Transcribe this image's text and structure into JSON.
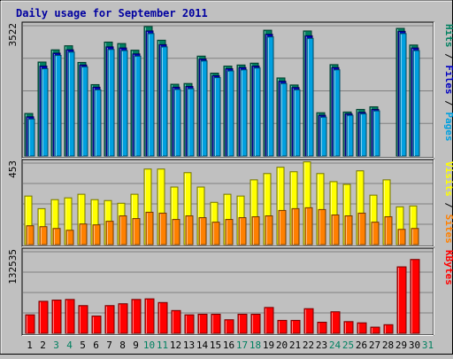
{
  "chart_data": [
    {
      "type": "bar",
      "title": "Daily usage for September 2011",
      "ymax_label": "3522",
      "legend": [
        {
          "label": "Pages",
          "color": "#00a0e0"
        },
        {
          "label": "Files",
          "color": "#0000c0"
        },
        {
          "label": "Hits",
          "color": "#008060"
        }
      ],
      "categories": [
        "1",
        "2",
        "3",
        "4",
        "5",
        "6",
        "7",
        "8",
        "9",
        "10",
        "11",
        "12",
        "13",
        "14",
        "15",
        "16",
        "17",
        "18",
        "19",
        "20",
        "21",
        "22",
        "23",
        "24",
        "25",
        "26",
        "27",
        "28",
        "29",
        "30",
        "31"
      ],
      "weekend_days": [
        "3",
        "4",
        "10",
        "11",
        "17",
        "18",
        "24",
        "25",
        "31"
      ],
      "ylim": [
        0,
        3522
      ],
      "series": [
        {
          "name": "Hits",
          "values": [
            1150,
            2540,
            2870,
            2980,
            2530,
            1930,
            3080,
            3040,
            2860,
            3500,
            3130,
            1940,
            1960,
            2700,
            2240,
            2430,
            2460,
            2510,
            3400,
            2110,
            1920,
            3380,
            1170,
            2470,
            1190,
            1260,
            1330,
            0,
            3450,
            3000,
            0
          ]
        },
        {
          "name": "Files",
          "values": [
            1060,
            2430,
            2780,
            2870,
            2460,
            1860,
            2950,
            2920,
            2760,
            3380,
            3010,
            1860,
            1880,
            2620,
            2170,
            2360,
            2390,
            2430,
            3290,
            2020,
            1850,
            3250,
            1100,
            2390,
            1140,
            1180,
            1260,
            0,
            3370,
            2920,
            0
          ]
        },
        {
          "name": "Pages",
          "values": [
            1000,
            2360,
            2720,
            2810,
            2410,
            1790,
            2880,
            2850,
            2700,
            3310,
            2950,
            1800,
            1820,
            2570,
            2120,
            2300,
            2330,
            2380,
            3220,
            1960,
            1790,
            3180,
            1050,
            2330,
            1100,
            1140,
            1220,
            0,
            3310,
            2850,
            0
          ]
        }
      ]
    },
    {
      "type": "bar",
      "ymax_label": "453",
      "legend": [
        {
          "label": "Sites",
          "color": "#ff8000"
        },
        {
          "label": "Visits",
          "color": "#ffff00"
        }
      ],
      "categories": [
        "1",
        "2",
        "3",
        "4",
        "5",
        "6",
        "7",
        "8",
        "9",
        "10",
        "11",
        "12",
        "13",
        "14",
        "15",
        "16",
        "17",
        "18",
        "19",
        "20",
        "21",
        "22",
        "23",
        "24",
        "25",
        "26",
        "27",
        "28",
        "29",
        "30",
        "31"
      ],
      "ylim": [
        0,
        453
      ],
      "series": [
        {
          "name": "Visits",
          "values": [
            270,
            200,
            250,
            260,
            280,
            250,
            245,
            230,
            280,
            420,
            420,
            320,
            400,
            320,
            235,
            280,
            270,
            360,
            395,
            430,
            405,
            460,
            395,
            350,
            335,
            410,
            275,
            360,
            210,
            215,
            0
          ]
        },
        {
          "name": "Sites",
          "values": [
            105,
            100,
            90,
            80,
            115,
            110,
            130,
            160,
            145,
            180,
            175,
            140,
            160,
            150,
            125,
            140,
            150,
            155,
            160,
            190,
            200,
            205,
            195,
            165,
            160,
            175,
            125,
            155,
            85,
            90,
            0
          ]
        }
      ]
    },
    {
      "type": "bar",
      "ymax_label": "132535",
      "legend": [
        {
          "label": "KBytes",
          "color": "#ff0000"
        }
      ],
      "categories": [
        "1",
        "2",
        "3",
        "4",
        "5",
        "6",
        "7",
        "8",
        "9",
        "10",
        "11",
        "12",
        "13",
        "14",
        "15",
        "16",
        "17",
        "18",
        "19",
        "20",
        "21",
        "22",
        "23",
        "24",
        "25",
        "26",
        "27",
        "28",
        "29",
        "30",
        "31"
      ],
      "ylim": [
        0,
        132535
      ],
      "series": [
        {
          "name": "KBytes",
          "values": [
            30000,
            52000,
            54000,
            55000,
            45000,
            28000,
            45000,
            48000,
            55000,
            56000,
            50000,
            37000,
            30000,
            31000,
            31000,
            22000,
            31000,
            31000,
            42000,
            21000,
            21000,
            40000,
            18000,
            35000,
            19000,
            17000,
            10000,
            14000,
            108000,
            120000,
            0
          ]
        }
      ]
    }
  ]
}
